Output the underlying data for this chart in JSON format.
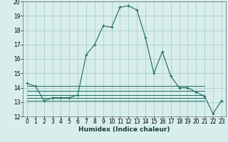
{
  "title": "",
  "xlabel": "Humidex (Indice chaleur)",
  "background_color": "#d8eeed",
  "grid_color": "#aacfcf",
  "line_color": "#1a6b5a",
  "xlim": [
    -0.5,
    23.5
  ],
  "ylim": [
    12,
    20
  ],
  "xticks": [
    0,
    1,
    2,
    3,
    4,
    5,
    6,
    7,
    8,
    9,
    10,
    11,
    12,
    13,
    14,
    15,
    16,
    17,
    18,
    19,
    20,
    21,
    22,
    23
  ],
  "yticks": [
    12,
    13,
    14,
    15,
    16,
    17,
    18,
    19,
    20
  ],
  "main_curve": {
    "x": [
      0,
      1,
      2,
      3,
      4,
      5,
      6,
      7,
      8,
      9,
      10,
      11,
      12,
      13,
      14,
      15,
      16,
      17,
      18,
      19,
      20,
      21,
      22,
      23
    ],
    "y": [
      14.3,
      14.1,
      13.1,
      13.3,
      13.3,
      13.3,
      13.5,
      16.3,
      17.0,
      18.3,
      18.2,
      19.6,
      19.7,
      19.4,
      17.5,
      15.0,
      16.5,
      14.8,
      14.0,
      14.0,
      13.7,
      13.4,
      12.2,
      13.1
    ]
  },
  "flat_curves": [
    {
      "x": [
        0,
        21
      ],
      "y": [
        13.1,
        13.1
      ]
    },
    {
      "x": [
        0,
        21
      ],
      "y": [
        13.3,
        13.3
      ]
    },
    {
      "x": [
        0,
        21
      ],
      "y": [
        13.5,
        13.5
      ]
    },
    {
      "x": [
        0,
        21
      ],
      "y": [
        13.8,
        13.8
      ]
    },
    {
      "x": [
        0,
        21
      ],
      "y": [
        14.1,
        14.1
      ]
    }
  ],
  "xlabel_fontsize": 6.5,
  "tick_fontsize": 5.5
}
